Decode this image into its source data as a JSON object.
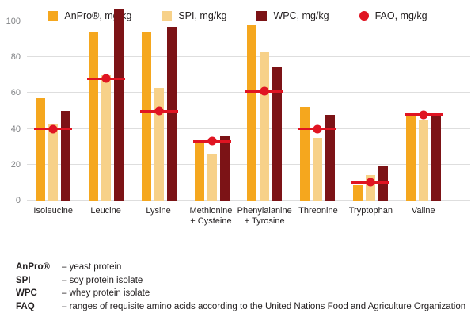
{
  "chart_data": {
    "type": "bar",
    "title": "",
    "unit": "mg/kg",
    "categories": [
      "Isoleucine",
      "Leucine",
      "Lysine",
      "Methionine + Cysteine",
      "Phenylalanine + Tyrosine",
      "Threonine",
      "Tryptophan",
      "Valine"
    ],
    "category_label_lines": [
      [
        "Isoleucine"
      ],
      [
        "Leucine"
      ],
      [
        "Lysine"
      ],
      [
        "Methionine",
        "+ Cysteine"
      ],
      [
        "Phenylalanine",
        "+ Tyrosine"
      ],
      [
        "Threonine"
      ],
      [
        "Tryptophan"
      ],
      [
        "Valine"
      ]
    ],
    "series": [
      {
        "name": "AnPro®, mg/kg",
        "key": "anpro",
        "color": "#F5A71E",
        "values": [
          57,
          94,
          94,
          33,
          98,
          52,
          9,
          49
        ]
      },
      {
        "name": "SPI, mg/kg",
        "key": "spi",
        "color": "#F7D189",
        "values": [
          43,
          70,
          63,
          26,
          83,
          35,
          14,
          45
        ]
      },
      {
        "name": "WPC, mg/kg",
        "key": "wpc",
        "color": "#7C1316",
        "values": [
          50,
          107,
          97,
          36,
          75,
          48,
          19,
          48
        ]
      }
    ],
    "fao_markers": {
      "name": "FAO, mg/kg",
      "color": "#E01422",
      "values": [
        40,
        68,
        50,
        33,
        61,
        40,
        10,
        48
      ]
    },
    "y_axis": {
      "ticks": [
        0,
        20,
        40,
        60,
        80,
        100
      ],
      "max": 108,
      "gridlines": true,
      "gridline_color": "#dedede",
      "label_color": "#808285"
    },
    "legend_position": "bottom"
  },
  "legend": {
    "items": [
      {
        "label": "AnPro®, mg/kg",
        "swatch": "square",
        "color": "#F5A71E"
      },
      {
        "label": "SPI, mg/kg",
        "swatch": "square",
        "color": "#F7D189"
      },
      {
        "label": "WPC, mg/kg",
        "swatch": "square",
        "color": "#7C1316"
      },
      {
        "label": "FAO, mg/kg",
        "swatch": "circle",
        "color": "#E01422"
      }
    ]
  },
  "footnotes": [
    {
      "term": "AnPro®",
      "definition": "– yeast protein"
    },
    {
      "term": "SPI",
      "definition": "– soy protein isolate"
    },
    {
      "term": "WPC",
      "definition": "– whey protein isolate"
    },
    {
      "term": "FAQ",
      "definition": "– ranges of requisite amino acids according to the United Nations Food and Agriculture Organization"
    }
  ]
}
